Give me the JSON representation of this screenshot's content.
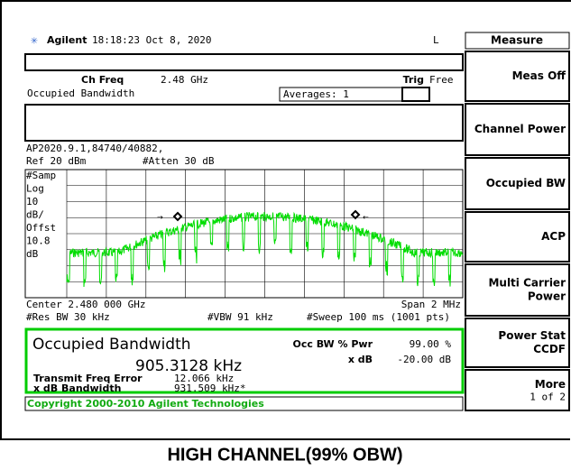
{
  "header": {
    "brand": "Agilent",
    "time": "18:18:23  Oct 8, 2020",
    "mode": "L"
  },
  "menu": {
    "title": "Measure",
    "items": [
      {
        "label": "Meas Off"
      },
      {
        "label": "Channel Power"
      },
      {
        "label": "Occupied BW"
      },
      {
        "label": "ACP"
      },
      {
        "label": "Multi Carrier Power"
      },
      {
        "label": "Power Stat CCDF"
      },
      {
        "label": "More",
        "sub": "1 of 2"
      }
    ]
  },
  "settings": {
    "ch_freq_label": "Ch Freq",
    "ch_freq": "2.48 GHz",
    "trig_label": "Trig",
    "trig": "Free",
    "measurement": "Occupied Bandwidth",
    "averages": "Averages: 1",
    "file": "AP2020.9.1,84740/40882,",
    "ref": "Ref 20 dBm",
    "atten": "#Atten 30 dB",
    "scale_labels": [
      "#Samp",
      "Log",
      "10",
      "dB/",
      "Offst",
      "10.8",
      "dB"
    ],
    "center": "Center 2.480 000 GHz",
    "span": "Span 2 MHz",
    "res_bw": "#Res BW 30 kHz",
    "vbw": "#VBW 91 kHz",
    "sweep": "#Sweep 100 ms (1001 pts)"
  },
  "results": {
    "title": "Occupied Bandwidth",
    "obw": "905.3128 kHz",
    "pwr_label": "Occ BW % Pwr",
    "pwr": "99.00 %",
    "xdb_label": "x dB",
    "xdb": "-20.00 dB",
    "tfe_label": "Transmit Freq Error",
    "tfe": "12.066 kHz",
    "xbw_label": "x dB Bandwidth",
    "xbw": "931.509 kHz*"
  },
  "copyright": "Copyright 2000-2010 Agilent Technologies",
  "caption": "HIGH CHANNEL(99% OBW)"
}
